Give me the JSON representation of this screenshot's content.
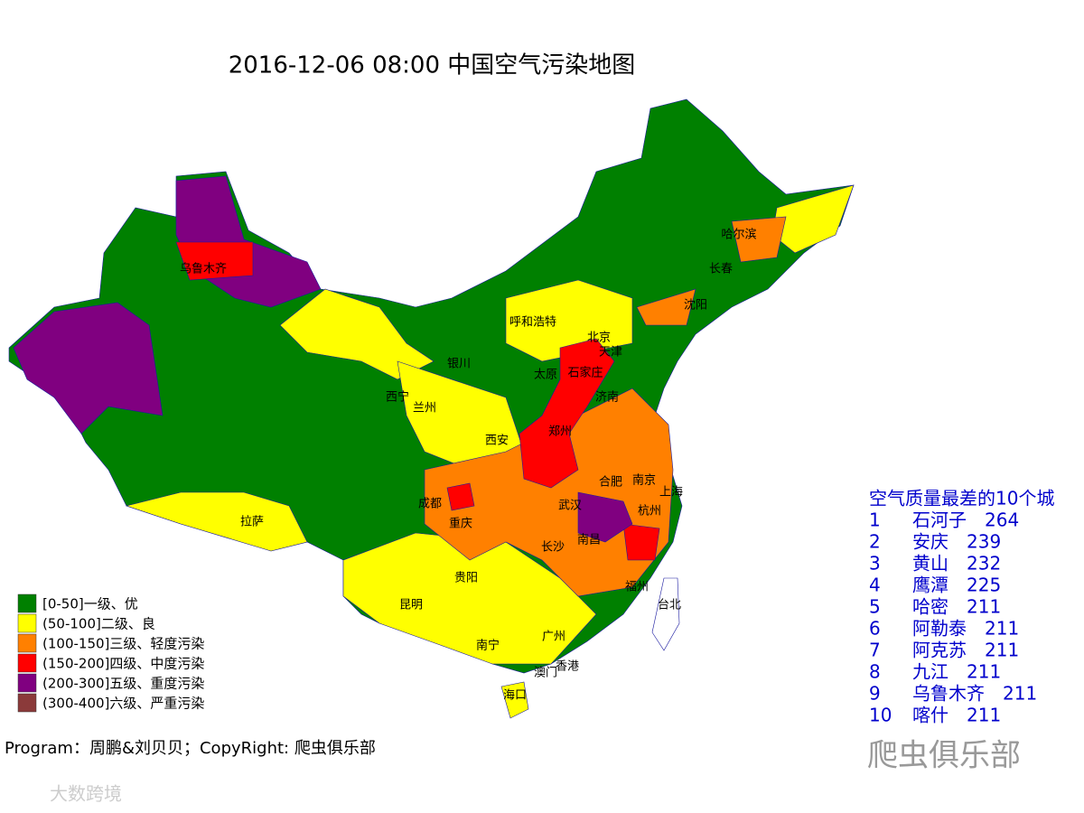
{
  "title": "2016-12-06 08:00 中国空气污染地图",
  "cities": [
    "乌鲁木齐",
    "哈尔滨",
    "长春",
    "沈阳",
    "呼和浩特",
    "北京",
    "天津",
    "银川",
    "太原",
    "石家庄",
    "西宁",
    "兰州",
    "济南",
    "郑州",
    "西安",
    "合肥",
    "南京",
    "成都",
    "上海",
    "武汉",
    "杭州",
    "重庆",
    "拉萨",
    "南昌",
    "长沙",
    "贵阳",
    "福州",
    "台北",
    "昆明",
    "南宁",
    "广州",
    "澳门",
    "香港",
    "海口"
  ],
  "legend": [
    {
      "label": "[0-50]一级、优",
      "color": "#008000"
    },
    {
      "label": "(50-100]二级、良",
      "color": "#ffff00"
    },
    {
      "label": "(100-150]三级、轻度污染",
      "color": "#ff8000"
    },
    {
      "label": "(150-200]四级、中度污染",
      "color": "#ff0000"
    },
    {
      "label": "(200-300]五级、重度污染",
      "color": "#800080"
    },
    {
      "label": "(300-400]六级、严重污染",
      "color": "#8b3a3a"
    }
  ],
  "ranking": {
    "title": "空气质量最差的10个城",
    "rows": [
      {
        "rank": 1,
        "city": "石河子",
        "value": 264
      },
      {
        "rank": 2,
        "city": "安庆",
        "value": 239
      },
      {
        "rank": 3,
        "city": "黄山",
        "value": 232
      },
      {
        "rank": 4,
        "city": "鹰潭",
        "value": 225
      },
      {
        "rank": 5,
        "city": "哈密",
        "value": 211
      },
      {
        "rank": 6,
        "city": "阿勒泰",
        "value": 211
      },
      {
        "rank": 7,
        "city": "阿克苏",
        "value": 211
      },
      {
        "rank": 8,
        "city": "九江",
        "value": 211
      },
      {
        "rank": 9,
        "city": "乌鲁木齐",
        "value": 211
      },
      {
        "rank": 10,
        "city": "喀什",
        "value": 211
      }
    ]
  },
  "credit": "Program：周鹏&刘贝贝；CopyRight: 爬虫俱乐部",
  "watermarks": [
    "爬虫俱乐部",
    "大数跨境"
  ]
}
